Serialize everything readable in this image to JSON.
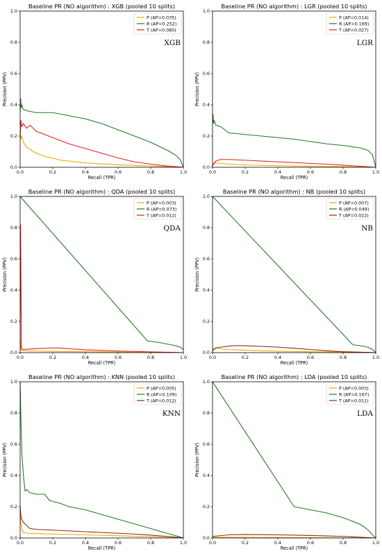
{
  "colors": {
    "P": "#f2a500",
    "R": "#217821",
    "T_red": "#dd1f1f",
    "T_brown": "#8b2a10"
  },
  "chart_data": [
    {
      "type": "line",
      "title": "Baseline PR (NO algorithm) : XGB (pooled 10 splits)",
      "panel_tag": "XGB",
      "xlabel": "Recall (TPR)",
      "ylabel": "Precision (PPV)",
      "xlim": [
        0,
        1
      ],
      "ylim": [
        0,
        1
      ],
      "xticks": [
        "0.0",
        "0.2",
        "0.4",
        "0.6",
        "0.8",
        "1.0"
      ],
      "yticks": [
        "0.0",
        "0.2",
        "0.4",
        "0.6",
        "0.8",
        "1.0"
      ],
      "grid": false,
      "legend_position": "top-right",
      "series": [
        {
          "name": "P (AP=0.035)",
          "color_key": "P",
          "x": [
            0,
            0.005,
            0.01,
            0.02,
            0.04,
            0.08,
            0.15,
            0.25,
            0.4,
            0.6,
            0.8,
            1.0
          ],
          "y": [
            0.22,
            0.18,
            0.2,
            0.16,
            0.13,
            0.1,
            0.07,
            0.045,
            0.028,
            0.016,
            0.008,
            0.0
          ]
        },
        {
          "name": "R (AP=0.252)",
          "color_key": "R",
          "x": [
            0,
            0.003,
            0.006,
            0.01,
            0.02,
            0.05,
            0.1,
            0.2,
            0.3,
            0.4,
            0.5,
            0.6,
            0.7,
            0.8,
            0.9,
            0.95,
            0.98,
            1.0
          ],
          "y": [
            0.35,
            0.44,
            0.38,
            0.4,
            0.37,
            0.36,
            0.35,
            0.35,
            0.33,
            0.31,
            0.28,
            0.24,
            0.2,
            0.16,
            0.11,
            0.08,
            0.05,
            0.0
          ]
        },
        {
          "name": "T (AP=0.080)",
          "color_key": "T_red",
          "x": [
            0,
            0.005,
            0.01,
            0.02,
            0.04,
            0.06,
            0.1,
            0.15,
            0.2,
            0.3,
            0.4,
            0.5,
            0.6,
            0.7,
            0.8,
            0.9,
            1.0
          ],
          "y": [
            0.2,
            0.3,
            0.26,
            0.28,
            0.25,
            0.27,
            0.23,
            0.21,
            0.19,
            0.15,
            0.12,
            0.09,
            0.06,
            0.035,
            0.02,
            0.008,
            0.0
          ]
        }
      ]
    },
    {
      "type": "line",
      "title": "Baseline PR (NO algorithm) : LGR (pooled 10 splits)",
      "panel_tag": "LGR",
      "xlabel": "Recall (TPR)",
      "ylabel": "Precision (PPV)",
      "xlim": [
        0,
        1
      ],
      "ylim": [
        0,
        1
      ],
      "xticks": [
        "0.0",
        "0.2",
        "0.4",
        "0.6",
        "0.8",
        "1.0"
      ],
      "yticks": [
        "0.0",
        "0.2",
        "0.4",
        "0.6",
        "0.8",
        "1.0"
      ],
      "grid": false,
      "legend_position": "top-right",
      "series": [
        {
          "name": "P (AP=0.014)",
          "color_key": "P",
          "x": [
            0,
            0.01,
            0.05,
            0.1,
            0.2,
            0.4,
            0.6,
            0.8,
            1.0
          ],
          "y": [
            0.015,
            0.03,
            0.025,
            0.02,
            0.015,
            0.01,
            0.007,
            0.004,
            0.0
          ]
        },
        {
          "name": "R (AP=0.169)",
          "color_key": "R",
          "x": [
            0,
            0.003,
            0.006,
            0.01,
            0.02,
            0.05,
            0.1,
            0.2,
            0.3,
            0.4,
            0.5,
            0.6,
            0.7,
            0.8,
            0.9,
            0.95,
            0.98,
            1.0
          ],
          "y": [
            0.28,
            0.34,
            0.28,
            0.3,
            0.27,
            0.26,
            0.22,
            0.21,
            0.2,
            0.19,
            0.18,
            0.165,
            0.15,
            0.14,
            0.125,
            0.11,
            0.08,
            0.0
          ]
        },
        {
          "name": "T (AP=0.027)",
          "color_key": "T_red",
          "x": [
            0,
            0.02,
            0.05,
            0.1,
            0.2,
            0.3,
            0.4,
            0.5,
            0.6,
            0.7,
            0.8,
            0.9,
            1.0
          ],
          "y": [
            0.01,
            0.04,
            0.05,
            0.05,
            0.045,
            0.04,
            0.035,
            0.03,
            0.025,
            0.02,
            0.013,
            0.007,
            0.0
          ]
        }
      ]
    },
    {
      "type": "line",
      "title": "Baseline PR (NO algorithm) : QDA (pooled 10 splits)",
      "panel_tag": "QDA",
      "xlabel": "Recall (TPR)",
      "ylabel": "Precision (PPV)",
      "xlim": [
        0,
        1
      ],
      "ylim": [
        0,
        1
      ],
      "xticks": [
        "0.0",
        "0.2",
        "0.4",
        "0.6",
        "0.8",
        "1.0"
      ],
      "yticks": [
        "0.0",
        "0.2",
        "0.4",
        "0.6",
        "0.8",
        "1.0"
      ],
      "grid": false,
      "legend_position": "top-right",
      "series": [
        {
          "name": "P (AP=0.003)",
          "color_key": "P",
          "x": [
            0,
            0.005,
            0.02,
            0.1,
            0.2,
            0.4,
            0.6,
            0.8,
            1.0
          ],
          "y": [
            0.1,
            0.015,
            0.012,
            0.01,
            0.008,
            0.006,
            0.004,
            0.002,
            0.0
          ]
        },
        {
          "name": "R (AP=0.073)",
          "color_key": "R",
          "x": [
            0,
            0.78,
            0.85,
            0.9,
            0.95,
            0.98,
            1.0
          ],
          "y": [
            1.0,
            0.075,
            0.065,
            0.055,
            0.045,
            0.035,
            0.02
          ]
        },
        {
          "name": "T (AP=0.012)",
          "color_key": "T_red",
          "x": [
            0,
            0.003,
            0.008,
            0.015,
            0.05,
            0.1,
            0.2,
            0.25,
            0.3,
            0.4,
            0.6,
            0.8,
            1.0
          ],
          "y": [
            0.03,
            0.82,
            0.03,
            0.02,
            0.022,
            0.026,
            0.03,
            0.029,
            0.025,
            0.018,
            0.01,
            0.005,
            0.0
          ]
        }
      ]
    },
    {
      "type": "line",
      "title": "Baseline PR (NO algorithm) : NB (pooled 10 splits)",
      "panel_tag": "NB",
      "xlabel": "Recall (TPR)",
      "ylabel": "Precision (PPV)",
      "xlim": [
        0,
        1
      ],
      "ylim": [
        0,
        1
      ],
      "xticks": [
        "0.0",
        "0.2",
        "0.4",
        "0.6",
        "0.8",
        "1.0"
      ],
      "yticks": [
        "0.0",
        "0.2",
        "0.4",
        "0.6",
        "0.8",
        "1.0"
      ],
      "grid": false,
      "legend_position": "top-right",
      "series": [
        {
          "name": "P (AP=0.007)",
          "color_key": "P",
          "x": [
            0,
            0.01,
            0.05,
            0.1,
            0.2,
            0.3,
            0.4,
            0.6,
            0.8,
            1.0
          ],
          "y": [
            0.02,
            0.03,
            0.025,
            0.02,
            0.016,
            0.012,
            0.009,
            0.006,
            0.003,
            0.0
          ]
        },
        {
          "name": "R (AP=0.049)",
          "color_key": "R",
          "x": [
            0,
            0.86,
            0.9,
            0.95,
            0.98,
            1.0
          ],
          "y": [
            1.0,
            0.05,
            0.045,
            0.035,
            0.02,
            0.0
          ]
        },
        {
          "name": "T (AP=0.022)",
          "color_key": "T_brown",
          "x": [
            0,
            0.02,
            0.05,
            0.1,
            0.15,
            0.2,
            0.3,
            0.4,
            0.5,
            0.6,
            0.7,
            0.8,
            0.9,
            1.0
          ],
          "y": [
            0.01,
            0.03,
            0.035,
            0.042,
            0.045,
            0.044,
            0.04,
            0.035,
            0.028,
            0.02,
            0.012,
            0.006,
            0.003,
            0.0
          ]
        }
      ]
    },
    {
      "type": "line",
      "title": "Baseline PR (NO algorithm) : KNN (pooled 10 splits)",
      "panel_tag": "KNN",
      "xlabel": "Recall (TPR)",
      "ylabel": "Precision (PPV)",
      "xlim": [
        0,
        1
      ],
      "ylim": [
        0,
        1
      ],
      "xticks": [
        "0.0",
        "0.2",
        "0.4",
        "0.6",
        "0.8",
        "1.0"
      ],
      "yticks": [
        "0.0",
        "0.2",
        "0.4",
        "0.6",
        "0.8",
        "1.0"
      ],
      "grid": false,
      "legend_position": "top-right",
      "series": [
        {
          "name": "P (AP=0.005)",
          "color_key": "P",
          "x": [
            0,
            0.005,
            0.01,
            0.02,
            0.05,
            0.1,
            0.2,
            0.4,
            0.6,
            0.8,
            1.0
          ],
          "y": [
            0.15,
            0.1,
            0.06,
            0.035,
            0.03,
            0.028,
            0.025,
            0.02,
            0.014,
            0.008,
            0.0
          ]
        },
        {
          "name": "R (AP=0.109)",
          "color_key": "R",
          "x": [
            0,
            0.005,
            0.01,
            0.02,
            0.03,
            0.04,
            0.06,
            0.1,
            0.15,
            0.18,
            0.25,
            0.3,
            0.4,
            0.5,
            0.6,
            0.7,
            0.8,
            0.9,
            1.0
          ],
          "y": [
            1.0,
            0.75,
            0.55,
            0.4,
            0.3,
            0.31,
            0.29,
            0.28,
            0.28,
            0.24,
            0.22,
            0.2,
            0.18,
            0.15,
            0.12,
            0.09,
            0.06,
            0.03,
            0.0
          ]
        },
        {
          "name": "T (AP=0.012)",
          "color_key": "T_brown",
          "x": [
            0,
            0.005,
            0.01,
            0.02,
            0.04,
            0.06,
            0.1,
            0.2,
            0.3,
            0.4,
            0.5,
            0.6,
            0.7,
            0.8,
            0.9,
            1.0
          ],
          "y": [
            0.2,
            0.14,
            0.12,
            0.1,
            0.08,
            0.06,
            0.055,
            0.05,
            0.045,
            0.04,
            0.035,
            0.03,
            0.025,
            0.018,
            0.01,
            0.0
          ]
        }
      ]
    },
    {
      "type": "line",
      "title": "Baseline PR (NO algorithm) : LDA (pooled 10 splits)",
      "panel_tag": "LDA",
      "xlabel": "Recall (TPR)",
      "ylabel": "Precision (PPV)",
      "xlim": [
        0,
        1
      ],
      "ylim": [
        0,
        1
      ],
      "xticks": [
        "0.0",
        "0.2",
        "0.4",
        "0.6",
        "0.8",
        "1.0"
      ],
      "yticks": [
        "0.0",
        "0.2",
        "0.4",
        "0.6",
        "0.8",
        "1.0"
      ],
      "grid": false,
      "legend_position": "top-right",
      "series": [
        {
          "name": "P (AP=0.003)",
          "color_key": "P",
          "x": [
            0,
            0.05,
            0.2,
            0.4,
            0.6,
            0.8,
            1.0
          ],
          "y": [
            0.005,
            0.004,
            0.004,
            0.003,
            0.002,
            0.001,
            0.0
          ]
        },
        {
          "name": "R (AP=0.167)",
          "color_key": "R",
          "x": [
            0,
            0.5,
            0.6,
            0.7,
            0.8,
            0.85,
            0.9,
            0.93,
            0.96,
            0.98,
            1.0
          ],
          "y": [
            1.0,
            0.2,
            0.18,
            0.16,
            0.13,
            0.11,
            0.09,
            0.07,
            0.045,
            0.02,
            0.0
          ]
        },
        {
          "name": "T (AP=0.011)",
          "color_key": "T_brown",
          "x": [
            0,
            0.05,
            0.1,
            0.2,
            0.3,
            0.4,
            0.5,
            0.6,
            0.7,
            0.8,
            0.9,
            1.0
          ],
          "y": [
            0.01,
            0.015,
            0.02,
            0.022,
            0.021,
            0.02,
            0.018,
            0.016,
            0.013,
            0.01,
            0.005,
            0.0
          ]
        }
      ]
    }
  ]
}
